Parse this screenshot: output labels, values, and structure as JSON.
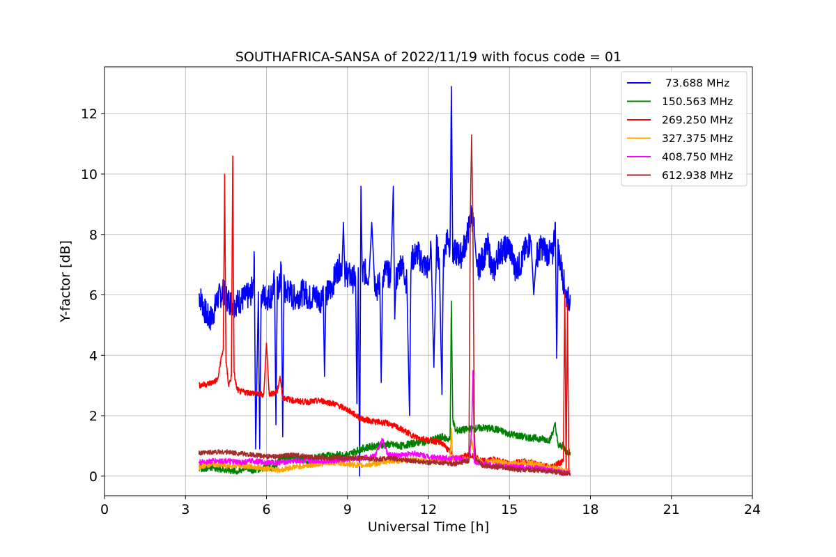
{
  "chart_data": {
    "type": "line",
    "title": "SOUTHAFRICA-SANSA of 2022/11/19 with focus code = 01",
    "xlabel": "Universal Time [h]",
    "ylabel": "Y-factor [dB]",
    "xlim": [
      0,
      24
    ],
    "ylim": [
      -0.65,
      13.55
    ],
    "xticks": [
      0,
      3,
      6,
      9,
      12,
      15,
      18,
      21,
      24
    ],
    "yticks": [
      0,
      2,
      4,
      6,
      8,
      10,
      12
    ],
    "xtick_labels": [
      "0",
      "3",
      "6",
      "9",
      "12",
      "15",
      "18",
      "21",
      "24"
    ],
    "ytick_labels": [
      "0",
      "2",
      "4",
      "6",
      "8",
      "10",
      "12"
    ],
    "grid": true,
    "legend_position": "top-right",
    "series": [
      {
        "name": " 73.688 MHz",
        "color": "#0000ff",
        "x": [
          3.5,
          3.6,
          3.7,
          3.8,
          3.9,
          4.0,
          4.1,
          4.2,
          4.3,
          4.4,
          4.6,
          4.8,
          5.0,
          5.2,
          5.4,
          5.5,
          5.55,
          5.6,
          5.7,
          5.75,
          5.8,
          6.0,
          6.2,
          6.3,
          6.35,
          6.4,
          6.5,
          6.55,
          6.6,
          6.65,
          6.7,
          6.8,
          7.0,
          7.2,
          7.4,
          7.6,
          7.8,
          8.0,
          8.1,
          8.15,
          8.2,
          8.4,
          8.6,
          8.8,
          8.85,
          8.9,
          9.0,
          9.2,
          9.3,
          9.35,
          9.4,
          9.45,
          9.5,
          9.55,
          9.6,
          9.8,
          9.9,
          10.0,
          10.1,
          10.2,
          10.25,
          10.3,
          10.4,
          10.6,
          10.7,
          10.75,
          10.8,
          11.0,
          11.2,
          11.3,
          11.35,
          11.4,
          11.6,
          11.8,
          12.0,
          12.1,
          12.2,
          12.3,
          12.4,
          12.5,
          12.55,
          12.6,
          12.7,
          12.8,
          12.85,
          12.9,
          13.0,
          13.2,
          13.4,
          13.6,
          13.7,
          13.8,
          14.0,
          14.2,
          14.4,
          14.6,
          14.8,
          15.0,
          15.2,
          15.4,
          15.6,
          15.8,
          15.9,
          16.0,
          16.2,
          16.4,
          16.6,
          16.7,
          16.75,
          16.8,
          17.0,
          17.1,
          17.2,
          17.25
        ],
        "y": [
          6.0,
          5.8,
          5.5,
          5.3,
          5.2,
          5.3,
          5.6,
          5.9,
          6.0,
          6.1,
          5.8,
          5.7,
          5.8,
          5.9,
          6.0,
          6.3,
          7.2,
          0.9,
          6.1,
          0.9,
          6.0,
          5.9,
          6.0,
          6.5,
          1.7,
          6.2,
          6.3,
          7.0,
          1.3,
          6.4,
          6.0,
          6.2,
          5.9,
          6.0,
          6.1,
          5.9,
          6.0,
          5.8,
          6.3,
          3.3,
          6.0,
          6.2,
          6.8,
          7.0,
          8.4,
          6.7,
          6.7,
          6.5,
          6.6,
          2.4,
          6.9,
          0.0,
          9.6,
          6.5,
          6.8,
          6.6,
          8.4,
          6.5,
          6.2,
          6.4,
          3.1,
          6.6,
          6.8,
          6.6,
          9.6,
          5.2,
          6.5,
          7.1,
          6.4,
          2.0,
          6.9,
          7.2,
          7.4,
          7.0,
          6.9,
          7.5,
          3.6,
          7.6,
          7.2,
          2.7,
          7.0,
          7.5,
          8.0,
          7.6,
          12.9,
          7.3,
          7.4,
          7.3,
          7.8,
          8.7,
          8.1,
          6.8,
          7.2,
          7.6,
          6.7,
          7.4,
          7.5,
          7.6,
          6.9,
          7.0,
          7.5,
          7.8,
          6.0,
          7.3,
          7.6,
          7.4,
          7.3,
          8.4,
          3.9,
          7.5,
          6.5,
          6.0,
          5.8,
          6.0
        ],
        "ymin": 0
      },
      {
        "name": "150.563 MHz",
        "color": "#008000",
        "x": [
          3.5,
          4.0,
          4.5,
          5.0,
          5.2,
          5.5,
          6.0,
          6.3,
          6.5,
          6.8,
          7.0,
          7.5,
          8.0,
          8.5,
          9.0,
          9.5,
          10.0,
          10.5,
          11.0,
          11.5,
          12.0,
          12.5,
          12.8,
          12.85,
          12.9,
          13.0,
          13.5,
          14.0,
          14.5,
          15.0,
          15.5,
          16.0,
          16.5,
          16.7,
          16.8,
          17.0,
          17.1,
          17.25
        ],
        "y": [
          0.25,
          0.3,
          0.2,
          0.15,
          0.3,
          0.2,
          0.3,
          0.25,
          0.6,
          0.65,
          0.6,
          0.5,
          0.65,
          0.7,
          0.7,
          0.9,
          1.0,
          1.05,
          1.0,
          1.1,
          1.15,
          1.3,
          1.2,
          5.8,
          1.9,
          1.5,
          1.55,
          1.6,
          1.55,
          1.4,
          1.3,
          1.25,
          1.2,
          1.7,
          1.0,
          1.0,
          0.8,
          0.8
        ]
      },
      {
        "name": "269.250 MHz",
        "color": "#ff0000",
        "x": [
          3.5,
          3.8,
          4.0,
          4.2,
          4.3,
          4.4,
          4.45,
          4.5,
          4.6,
          4.7,
          4.75,
          4.8,
          4.9,
          5.0,
          5.5,
          5.9,
          6.0,
          6.1,
          6.4,
          6.5,
          6.6,
          7.0,
          7.5,
          8.0,
          8.5,
          9.0,
          9.5,
          10.0,
          10.5,
          11.0,
          11.5,
          12.0,
          12.5,
          12.8,
          13.0,
          13.5,
          14.0,
          14.5,
          15.0,
          15.5,
          16.0,
          16.5,
          17.0,
          17.05,
          17.1,
          17.15,
          17.2
        ],
        "y": [
          3.0,
          3.05,
          3.1,
          3.2,
          3.8,
          4.2,
          10.0,
          3.8,
          3.0,
          3.3,
          10.6,
          3.4,
          2.9,
          2.8,
          2.75,
          2.7,
          4.4,
          2.7,
          2.8,
          3.3,
          2.6,
          2.5,
          2.45,
          2.5,
          2.4,
          2.2,
          1.9,
          1.8,
          1.75,
          1.55,
          1.3,
          1.2,
          1.1,
          0.8,
          0.55,
          0.7,
          0.5,
          0.55,
          0.4,
          0.5,
          0.4,
          0.3,
          0.5,
          6.1,
          0.1,
          5.7,
          0.2
        ]
      },
      {
        "name": "327.375 MHz",
        "color": "#ffa500",
        "x": [
          3.5,
          4.0,
          4.5,
          5.0,
          5.5,
          6.0,
          6.5,
          7.0,
          7.5,
          8.0,
          8.5,
          9.0,
          9.5,
          10.0,
          10.5,
          11.0,
          11.5,
          12.0,
          12.5,
          12.8,
          12.85,
          12.9,
          13.0,
          13.5,
          13.6,
          13.7,
          14.0,
          14.5,
          15.0,
          15.5,
          16.0,
          16.5,
          17.0,
          17.25
        ],
        "y": [
          0.3,
          0.4,
          0.35,
          0.35,
          0.3,
          0.25,
          0.2,
          0.3,
          0.35,
          0.4,
          0.45,
          0.4,
          0.35,
          0.4,
          0.5,
          0.5,
          0.55,
          0.5,
          0.5,
          0.6,
          1.5,
          0.6,
          0.6,
          0.55,
          1.2,
          0.6,
          0.45,
          0.5,
          0.4,
          0.45,
          0.4,
          0.3,
          0.2,
          0.15
        ]
      },
      {
        "name": "408.750 MHz",
        "color": "#ff00ff",
        "x": [
          3.5,
          4.0,
          4.5,
          5.0,
          5.5,
          6.0,
          6.5,
          7.0,
          7.5,
          8.0,
          8.5,
          9.0,
          9.5,
          10.0,
          10.3,
          10.5,
          11.0,
          11.5,
          12.0,
          12.5,
          13.0,
          13.5,
          13.6,
          13.65,
          13.7,
          14.0,
          14.5,
          15.0,
          15.5,
          16.0,
          16.5,
          17.0,
          17.25
        ],
        "y": [
          0.45,
          0.5,
          0.5,
          0.45,
          0.5,
          0.45,
          0.45,
          0.5,
          0.5,
          0.5,
          0.5,
          0.55,
          0.6,
          0.65,
          1.2,
          0.7,
          0.7,
          0.75,
          0.65,
          0.6,
          0.6,
          0.5,
          1.5,
          3.5,
          0.5,
          0.4,
          0.35,
          0.3,
          0.3,
          0.25,
          0.2,
          0.1,
          0.1
        ]
      },
      {
        "name": "612.938 MHz",
        "color": "#a52a2a",
        "x": [
          3.5,
          4.0,
          4.5,
          5.0,
          5.5,
          6.0,
          6.5,
          7.0,
          7.5,
          8.0,
          8.5,
          9.0,
          9.5,
          10.0,
          10.5,
          11.0,
          11.5,
          12.0,
          12.5,
          13.0,
          13.5,
          13.55,
          13.6,
          13.65,
          13.7,
          13.75,
          14.0,
          14.5,
          15.0,
          15.5,
          16.0,
          16.5,
          17.0,
          17.25
        ],
        "y": [
          0.75,
          0.8,
          0.8,
          0.75,
          0.7,
          0.65,
          0.65,
          0.7,
          0.65,
          0.6,
          0.6,
          0.6,
          0.6,
          0.55,
          0.6,
          0.55,
          0.5,
          0.45,
          0.45,
          0.4,
          0.5,
          8.7,
          11.3,
          8.0,
          1.4,
          0.6,
          0.35,
          0.3,
          0.25,
          0.2,
          0.2,
          0.15,
          0.1,
          0.1
        ]
      }
    ]
  }
}
